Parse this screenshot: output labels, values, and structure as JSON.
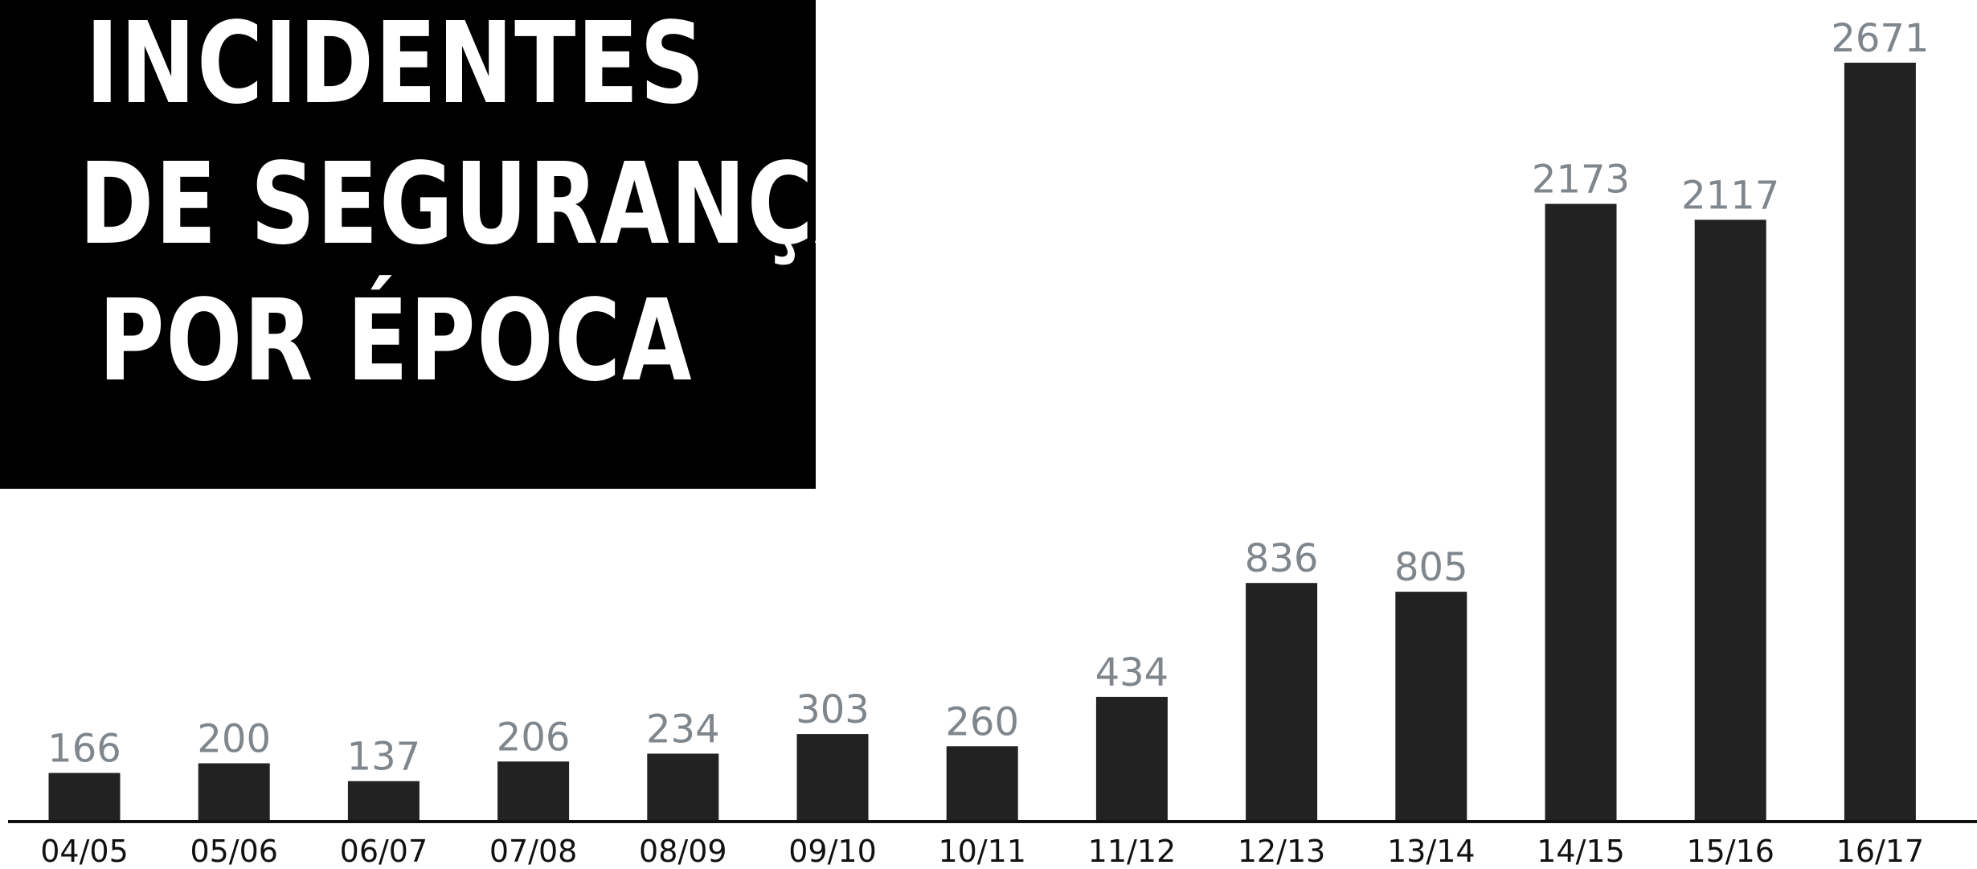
{
  "title": {
    "line1": "INCIDENTES",
    "line2": "DE SEGURANÇA",
    "line3": "POR ÉPOCA"
  },
  "chart_data": {
    "type": "bar",
    "title": "INCIDENTES DE SEGURANÇA POR ÉPOCA",
    "categories": [
      "04/05",
      "05/06",
      "06/07",
      "07/08",
      "08/09",
      "09/10",
      "10/11",
      "11/12",
      "12/13",
      "13/14",
      "14/15",
      "15/16",
      "16/17"
    ],
    "values": [
      166,
      200,
      137,
      206,
      234,
      303,
      260,
      434,
      836,
      805,
      2173,
      2117,
      2671
    ],
    "xlabel": "",
    "ylabel": "",
    "ylim": [
      0,
      2671
    ],
    "grid": false,
    "data_labels": true,
    "colors": {
      "bar": "#222222",
      "value_label": "#7f868c",
      "title_background": "#000000",
      "title_text": "#ffffff",
      "baseline": "#111111"
    }
  }
}
